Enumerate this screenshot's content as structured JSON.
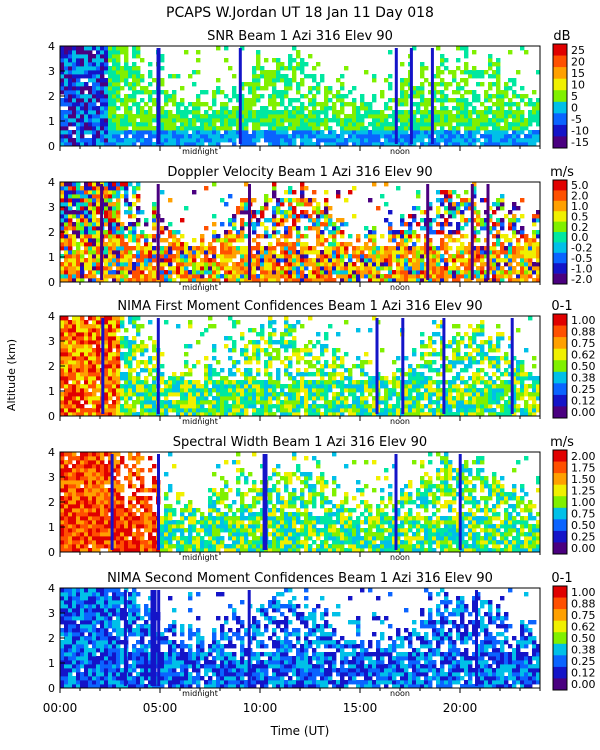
{
  "header": {
    "title": "PCAPS W.Jordan UT  18 Jan 11 Day 018"
  },
  "y_axis_label": "Altitude (km)",
  "x_axis": {
    "label": "Time (UT)",
    "ticks": [
      "00:00",
      "05:00",
      "10:00",
      "15:00",
      "20:00"
    ],
    "tick_hours": [
      0,
      5,
      10,
      15,
      20
    ],
    "range_hours": [
      0,
      24
    ],
    "markers": [
      {
        "label": "midnight",
        "hour": 7
      },
      {
        "label": "noon",
        "hour": 17
      }
    ]
  },
  "colors": {
    "palette": [
      "#4a0080",
      "#1414c8",
      "#0a64ff",
      "#00c0e8",
      "#00e8a0",
      "#80f000",
      "#f0f000",
      "#ffa000",
      "#ff5000",
      "#e00000"
    ]
  },
  "chart_data": [
    {
      "type": "heatmap",
      "title": "SNR Beam 1 Azi 316 Elev 90",
      "unit": "dB",
      "ylim": [
        0,
        4
      ],
      "yticks": [
        "0",
        "1",
        "2",
        "3",
        "4"
      ],
      "colorbar_labels": [
        "25",
        "20",
        "15",
        "10",
        "5",
        "0",
        "-5",
        "-10",
        "-15"
      ]
    },
    {
      "type": "heatmap",
      "title": "Doppler Velocity Beam 1 Azi 316 Elev 90",
      "unit": "m/s",
      "ylim": [
        0,
        4
      ],
      "yticks": [
        "0",
        "1",
        "2",
        "3",
        "4"
      ],
      "colorbar_labels": [
        "5.0",
        "2.0",
        "1.0",
        "0.5",
        "0.2",
        "0.0",
        "-0.2",
        "-0.5",
        "-1.0",
        "-2.0"
      ]
    },
    {
      "type": "heatmap",
      "title": "NIMA First Moment Confidences Beam 1 Azi 316 Elev 90",
      "unit": "0-1",
      "ylim": [
        0,
        4
      ],
      "yticks": [
        "0",
        "1",
        "2",
        "3",
        "4"
      ],
      "colorbar_labels": [
        "1.00",
        "0.88",
        "0.75",
        "0.62",
        "0.50",
        "0.38",
        "0.25",
        "0.12",
        "0.00"
      ]
    },
    {
      "type": "heatmap",
      "title": "Spectral Width Beam 1 Azi 316 Elev 90",
      "unit": "m/s",
      "ylim": [
        0,
        4
      ],
      "yticks": [
        "0",
        "1",
        "2",
        "3",
        "4"
      ],
      "colorbar_labels": [
        "2.00",
        "1.75",
        "1.50",
        "1.25",
        "1.00",
        "0.75",
        "0.50",
        "0.25",
        "0.00"
      ]
    },
    {
      "type": "heatmap",
      "title": "NIMA Second Moment Confidences Beam 1 Azi 316 Elev 90",
      "unit": "0-1",
      "ylim": [
        0,
        4
      ],
      "yticks": [
        "0",
        "1",
        "2",
        "3",
        "4"
      ],
      "colorbar_labels": [
        "1.00",
        "0.88",
        "0.75",
        "0.62",
        "0.50",
        "0.38",
        "0.25",
        "0.12",
        "0.00"
      ]
    }
  ]
}
